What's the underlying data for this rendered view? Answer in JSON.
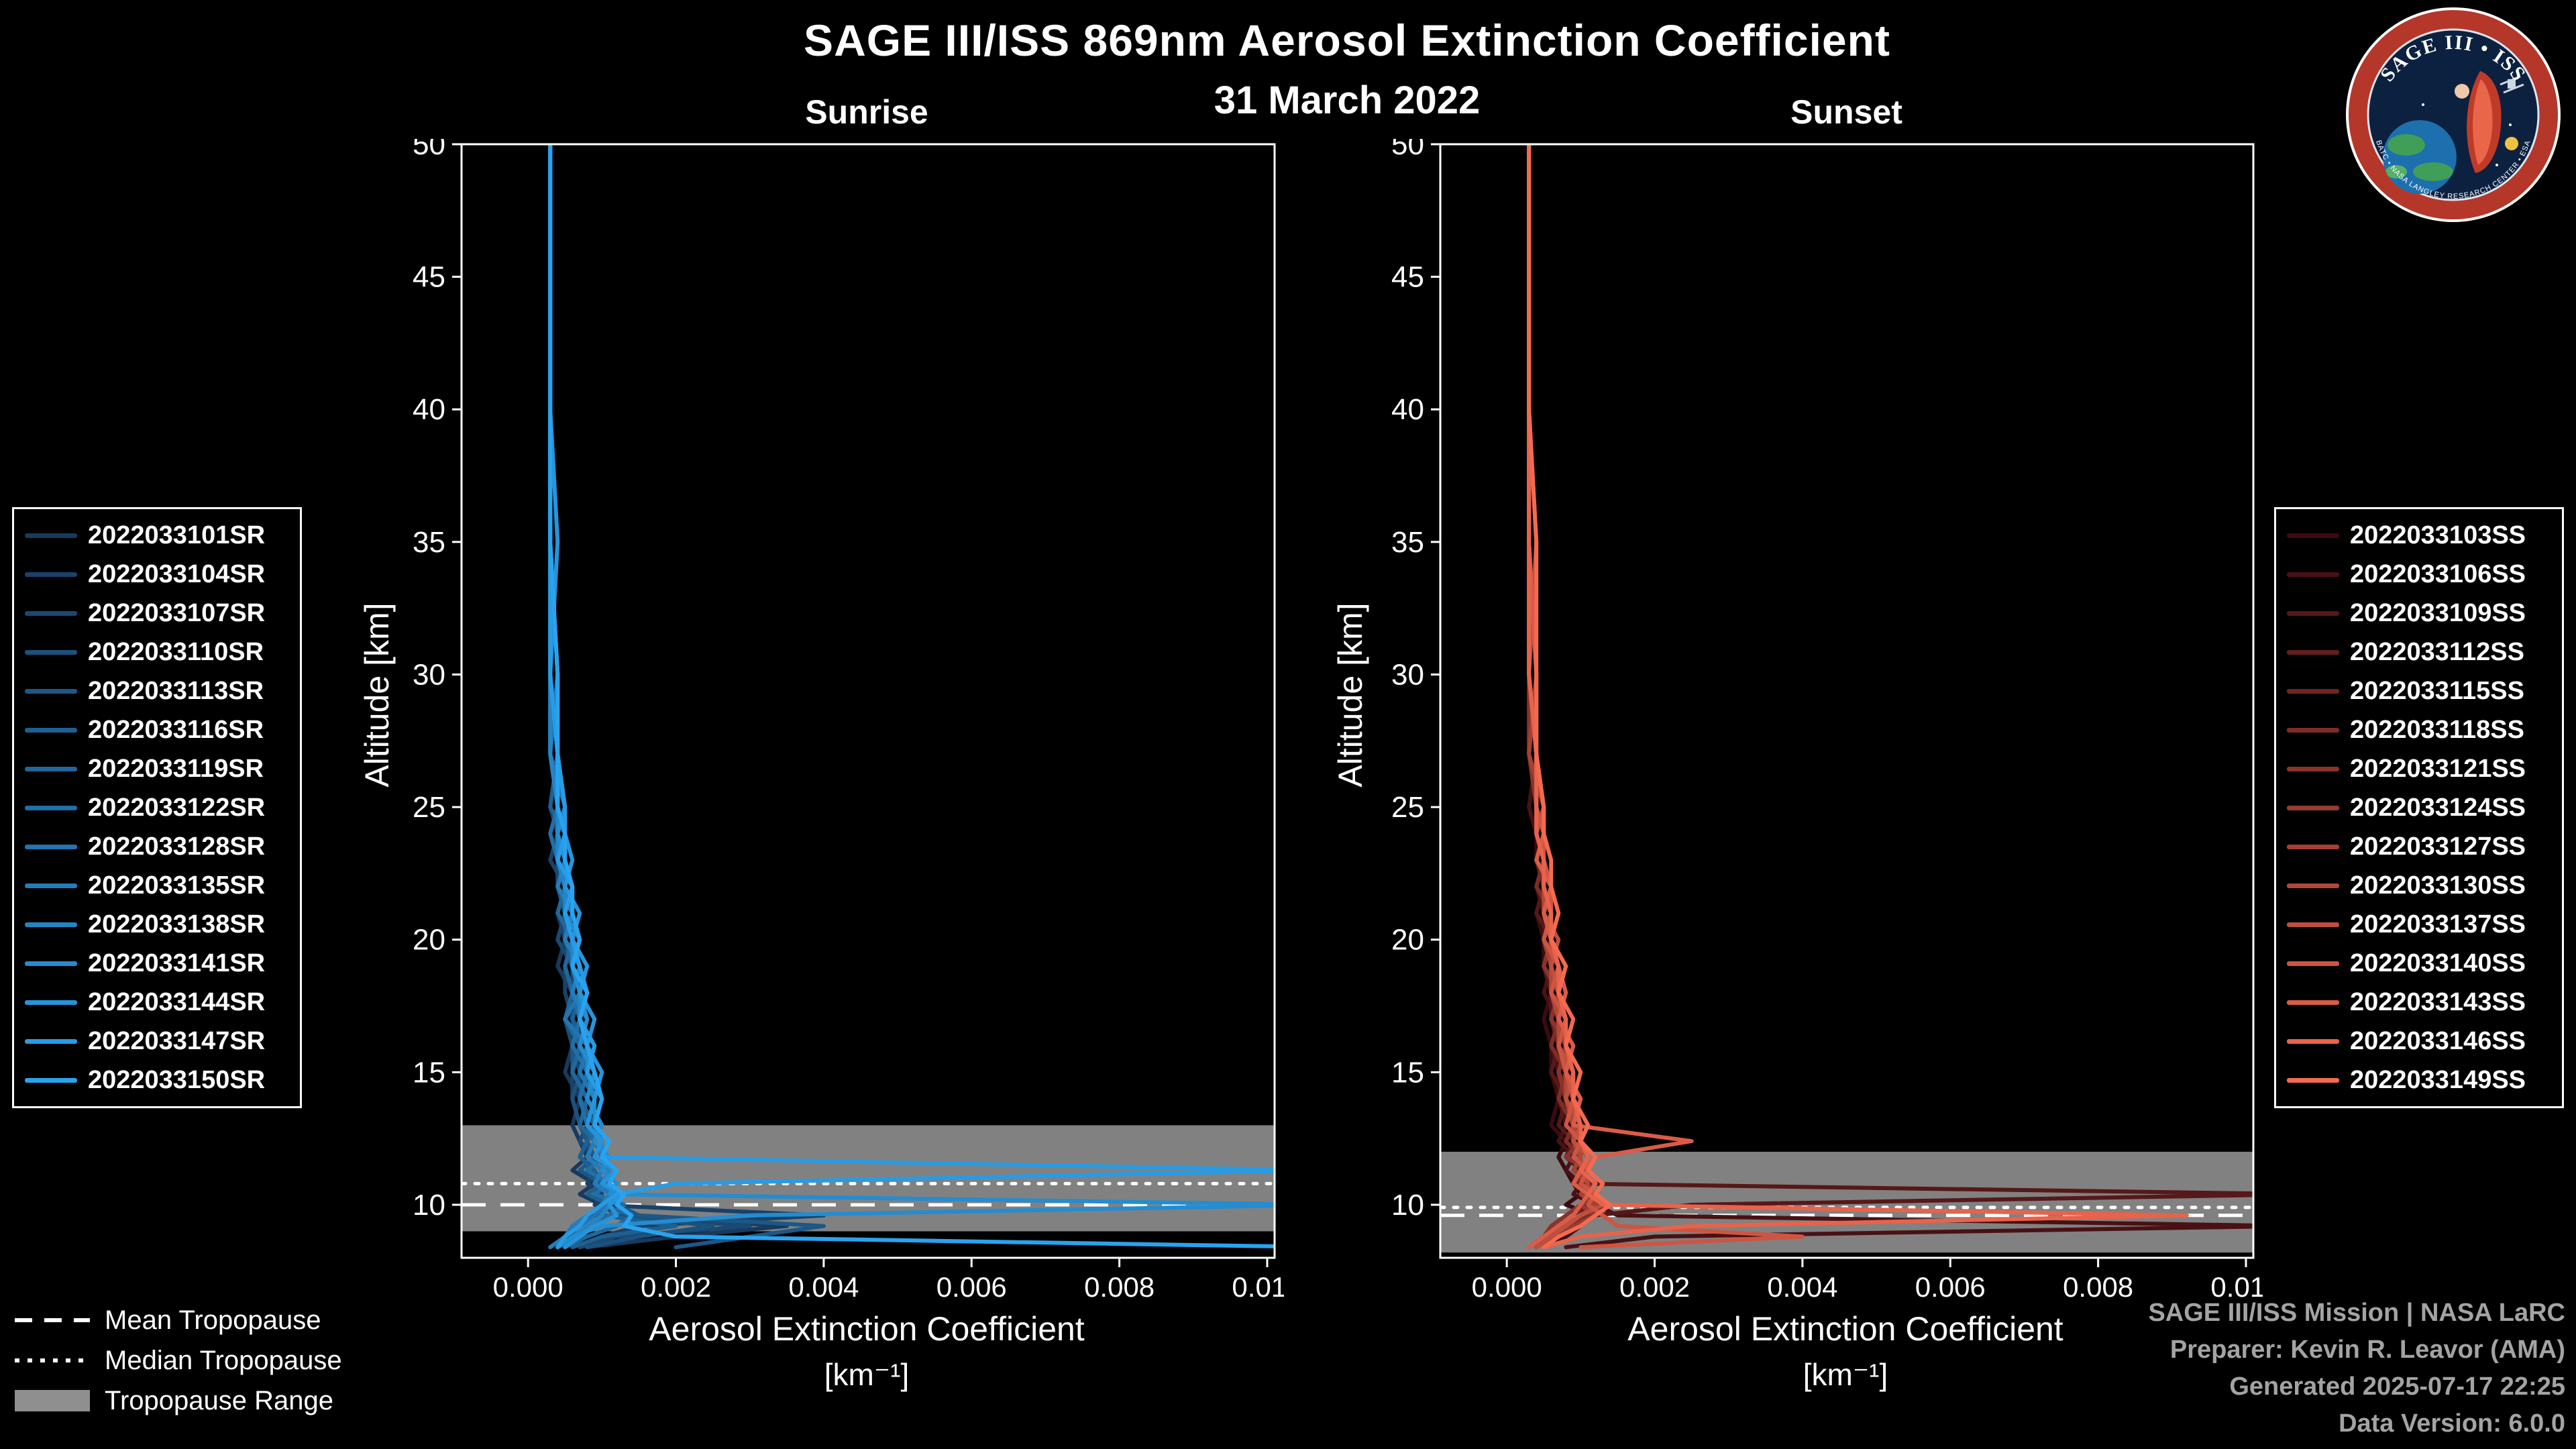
{
  "header": {
    "title": "SAGE III/ISS 869nm Aerosol Extinction Coefficient",
    "date": "31 March 2022"
  },
  "legend_tropopause": {
    "items": [
      {
        "label": "Mean Tropopause"
      },
      {
        "label": "Median Tropopause"
      },
      {
        "label": "Tropopause Range"
      }
    ]
  },
  "footer": {
    "lines": [
      "SAGE III/ISS Mission | NASA LaRC",
      "Preparer: Kevin R. Leavor (AMA)",
      "Generated 2025-07-17 22:25",
      "Data Version: 6.0.0"
    ]
  },
  "logo": {
    "title": "SAGE III • ISS",
    "ring_text": "BATC • NASA LANGLEY RESEARCH CENTER • ESA"
  },
  "colors": {
    "background": "#000000",
    "axis": "#ffffff",
    "band": "#8f8f8f",
    "sunrise_accent": "#29a3ef",
    "sunset_accent": "#f46a50"
  },
  "chart_data": [
    {
      "type": "line",
      "title": "Sunrise",
      "xlabel": "Aerosol Extinction Coefficient",
      "xunit": "[km⁻¹]",
      "ylabel": "Altitude [km]",
      "xlim": [
        -0.0009,
        0.0101
      ],
      "ylim": [
        8,
        50
      ],
      "xticks": [
        0.0,
        0.002,
        0.004,
        0.006,
        0.008,
        0.01
      ],
      "yticks": [
        10,
        15,
        20,
        25,
        30,
        35,
        40,
        45,
        50
      ],
      "grid": false,
      "legend_position": "left-outside",
      "band_color": "#8f8f8f",
      "tropopause": {
        "mean": 10.0,
        "median": 10.8,
        "range": [
          9.0,
          13.0
        ]
      },
      "values_scale": 0.0001,
      "altitudes": [
        50,
        45,
        40,
        35,
        30,
        27,
        25,
        24,
        23,
        22,
        21,
        20,
        19,
        18,
        17,
        16,
        15,
        14,
        13,
        12.4,
        11.8,
        11.3,
        10.8,
        10.4,
        10,
        9.6,
        9.2,
        8.8,
        8.4
      ],
      "series": [
        {
          "name": "2022033101SR",
          "color": "#173A5E",
          "vals": [
            3,
            3,
            3,
            3,
            3,
            3,
            4,
            3,
            4,
            5,
            4,
            5,
            4,
            6,
            5,
            6,
            5,
            7,
            6,
            7,
            8,
            6,
            9,
            7,
            10,
            8,
            35,
            20,
            8
          ]
        },
        {
          "name": "2022033104SR",
          "color": "#184268",
          "vals": [
            3,
            3,
            3,
            3,
            3,
            4,
            3,
            4,
            3,
            5,
            4,
            6,
            5,
            5,
            6,
            7,
            6,
            6,
            7,
            8,
            7,
            9,
            8,
            10,
            9,
            40,
            15,
            10,
            6
          ]
        },
        {
          "name": "2022033107SR",
          "color": "#1A4973",
          "vals": [
            3,
            3,
            3,
            3,
            4,
            3,
            4,
            5,
            4,
            4,
            5,
            4,
            6,
            6,
            5,
            6,
            7,
            7,
            8,
            7,
            9,
            8,
            10,
            9,
            11,
            10,
            30,
            12,
            7
          ]
        },
        {
          "name": "2022033110SR",
          "color": "#1B517D",
          "vals": [
            3,
            3,
            3,
            4,
            3,
            3,
            5,
            4,
            5,
            5,
            6,
            5,
            6,
            7,
            6,
            8,
            7,
            6,
            7,
            9,
            8,
            10,
            9,
            11,
            10,
            12,
            25,
            15,
            8
          ]
        },
        {
          "name": "2022033113SR",
          "color": "#1C5887",
          "vals": [
            3,
            3,
            3,
            3,
            3,
            4,
            4,
            4,
            5,
            4,
            5,
            6,
            5,
            6,
            7,
            6,
            6,
            8,
            7,
            8,
            9,
            7,
            10,
            9,
            12,
            15,
            40,
            30,
            20
          ]
        },
        {
          "name": "2022033116SR",
          "color": "#1D6092",
          "vals": [
            3,
            3,
            3,
            3,
            4,
            4,
            3,
            5,
            4,
            6,
            5,
            5,
            6,
            7,
            6,
            7,
            8,
            7,
            9,
            8,
            7,
            9,
            10,
            8,
            11,
            10,
            20,
            10,
            6
          ]
        },
        {
          "name": "2022033119SR",
          "color": "#1F679C",
          "vals": [
            3,
            3,
            3,
            3,
            3,
            3,
            4,
            4,
            5,
            5,
            4,
            6,
            5,
            6,
            5,
            7,
            6,
            8,
            7,
            9,
            8,
            10,
            9,
            12,
            10,
            14,
            12,
            8,
            5
          ]
        },
        {
          "name": "2022033122SR",
          "color": "#206FA7",
          "vals": [
            3,
            3,
            3,
            3,
            3,
            4,
            4,
            3,
            4,
            5,
            6,
            5,
            7,
            6,
            7,
            6,
            8,
            7,
            8,
            9,
            10,
            8,
            11,
            9,
            13,
            11,
            9,
            7,
            4
          ]
        },
        {
          "name": "2022033128SR",
          "color": "#2176B1",
          "vals": [
            3,
            3,
            3,
            3,
            4,
            3,
            5,
            4,
            4,
            6,
            5,
            6,
            6,
            7,
            5,
            8,
            7,
            9,
            8,
            10,
            9,
            11,
            10,
            12,
            11,
            9,
            7,
            5,
            4
          ]
        },
        {
          "name": "2022033135SR",
          "color": "#237DBB",
          "vals": [
            3,
            3,
            3,
            3,
            3,
            4,
            4,
            5,
            5,
            4,
            6,
            5,
            7,
            6,
            8,
            7,
            9,
            8,
            10,
            9,
            8,
            10,
            9,
            11,
            10,
            8,
            6,
            5,
            3
          ]
        },
        {
          "name": "2022033138SR",
          "color": "#2485C6",
          "vals": [
            3,
            3,
            3,
            3,
            3,
            3,
            4,
            4,
            4,
            5,
            5,
            6,
            6,
            7,
            7,
            8,
            8,
            9,
            9,
            10,
            10,
            11,
            10,
            12,
            11,
            10,
            8,
            6,
            4
          ]
        },
        {
          "name": "2022033141SR",
          "color": "#258CD0",
          "vals": [
            3,
            3,
            3,
            3,
            4,
            4,
            5,
            4,
            5,
            6,
            5,
            7,
            6,
            7,
            8,
            7,
            9,
            8,
            10,
            9,
            11,
            10,
            12,
            11,
            108,
            30,
            10,
            6,
            4
          ]
        },
        {
          "name": "2022033144SR",
          "color": "#2694DA",
          "vals": [
            3,
            3,
            3,
            4,
            3,
            4,
            4,
            5,
            6,
            5,
            7,
            6,
            8,
            7,
            9,
            8,
            10,
            9,
            8,
            10,
            9,
            12,
            10,
            13,
            11,
            12,
            9,
            7,
            5
          ]
        },
        {
          "name": "2022033147SR",
          "color": "#289BE5",
          "vals": [
            3,
            3,
            3,
            3,
            3,
            4,
            5,
            5,
            4,
            6,
            5,
            6,
            7,
            8,
            7,
            9,
            8,
            10,
            9,
            11,
            10,
            106,
            20,
            12,
            10,
            8,
            7,
            5,
            4
          ]
        },
        {
          "name": "2022033150SR",
          "color": "#29A3EF",
          "vals": [
            3,
            3,
            3,
            3,
            4,
            4,
            4,
            5,
            5,
            6,
            6,
            7,
            6,
            8,
            7,
            8,
            9,
            10,
            9,
            11,
            10,
            12,
            11,
            13,
            12,
            14,
            13,
            20,
            108
          ]
        }
      ]
    },
    {
      "type": "line",
      "title": "Sunset",
      "xlabel": "Aerosol Extinction Coefficient",
      "xunit": "[km⁻¹]",
      "ylabel": "Altitude [km]",
      "xlim": [
        -0.0009,
        0.0101
      ],
      "ylim": [
        8,
        50
      ],
      "xticks": [
        0.0,
        0.002,
        0.004,
        0.006,
        0.008,
        0.01
      ],
      "yticks": [
        10,
        15,
        20,
        25,
        30,
        35,
        40,
        45,
        50
      ],
      "grid": false,
      "legend_position": "right-outside",
      "band_color": "#8f8f8f",
      "tropopause": {
        "mean": 9.6,
        "median": 9.9,
        "range": [
          8.2,
          12.0
        ]
      },
      "values_scale": 0.0001,
      "altitudes": [
        50,
        45,
        40,
        35,
        30,
        27,
        25,
        24,
        23,
        22,
        21,
        20,
        19,
        18,
        17,
        16,
        15,
        14,
        13,
        12.4,
        11.8,
        11.3,
        10.8,
        10.4,
        10,
        9.6,
        9.2,
        8.8,
        8.4
      ],
      "series": [
        {
          "name": "2022033103SS",
          "color": "#3C0A0F",
          "vals": [
            3,
            3,
            3,
            3,
            3,
            3,
            4,
            4,
            4,
            5,
            4,
            5,
            5,
            6,
            5,
            6,
            6,
            7,
            6,
            8,
            7,
            8,
            9,
            10,
            8,
            12,
            10,
            8,
            5
          ]
        },
        {
          "name": "2022033106SS",
          "color": "#491114",
          "vals": [
            3,
            3,
            3,
            3,
            3,
            4,
            3,
            4,
            5,
            4,
            5,
            5,
            6,
            5,
            7,
            6,
            7,
            7,
            8,
            7,
            9,
            8,
            10,
            9,
            12,
            15,
            106,
            20,
            8
          ]
        },
        {
          "name": "2022033109SS",
          "color": "#561818",
          "vals": [
            3,
            3,
            3,
            3,
            4,
            3,
            4,
            4,
            5,
            5,
            4,
            6,
            5,
            6,
            6,
            7,
            6,
            8,
            7,
            9,
            8,
            10,
            9,
            108,
            25,
            12,
            8,
            6,
            4
          ]
        },
        {
          "name": "2022033112SS",
          "color": "#631F1D",
          "vals": [
            3,
            3,
            3,
            4,
            3,
            4,
            4,
            5,
            4,
            5,
            6,
            5,
            6,
            7,
            6,
            7,
            8,
            7,
            9,
            8,
            10,
            9,
            11,
            10,
            12,
            10,
            8,
            6,
            5
          ]
        },
        {
          "name": "2022033115SS",
          "color": "#712522",
          "vals": [
            3,
            3,
            3,
            3,
            3,
            4,
            5,
            4,
            5,
            6,
            5,
            6,
            5,
            7,
            6,
            8,
            7,
            9,
            8,
            10,
            9,
            11,
            10,
            12,
            11,
            9,
            7,
            5,
            4
          ]
        },
        {
          "name": "2022033118SS",
          "color": "#7E2C26",
          "vals": [
            3,
            3,
            3,
            3,
            4,
            4,
            4,
            5,
            5,
            4,
            6,
            5,
            7,
            6,
            7,
            6,
            8,
            7,
            9,
            8,
            10,
            9,
            12,
            10,
            13,
            11,
            8,
            6,
            4
          ]
        },
        {
          "name": "2022033121SS",
          "color": "#8B332B",
          "vals": [
            3,
            3,
            3,
            3,
            3,
            3,
            4,
            4,
            5,
            5,
            6,
            6,
            5,
            7,
            6,
            8,
            7,
            8,
            9,
            10,
            8,
            11,
            9,
            12,
            10,
            8,
            6,
            5,
            3
          ]
        },
        {
          "name": "2022033124SS",
          "color": "#983A30",
          "vals": [
            3,
            3,
            3,
            3,
            3,
            4,
            4,
            5,
            4,
            6,
            5,
            6,
            7,
            6,
            8,
            7,
            9,
            8,
            10,
            9,
            11,
            10,
            9,
            11,
            10,
            12,
            9,
            6,
            4
          ]
        },
        {
          "name": "2022033127SS",
          "color": "#A54134",
          "vals": [
            3,
            3,
            3,
            3,
            4,
            3,
            5,
            4,
            5,
            5,
            6,
            5,
            6,
            7,
            7,
            8,
            8,
            9,
            9,
            10,
            10,
            9,
            11,
            10,
            12,
            10,
            8,
            5,
            3
          ]
        },
        {
          "name": "2022033130SS",
          "color": "#B24839",
          "vals": [
            3,
            3,
            3,
            3,
            3,
            4,
            4,
            4,
            5,
            5,
            5,
            6,
            6,
            6,
            7,
            7,
            8,
            8,
            9,
            9,
            10,
            10,
            11,
            11,
            10,
            9,
            7,
            5,
            4
          ]
        },
        {
          "name": "2022033137SS",
          "color": "#BF4F3D",
          "vals": [
            3,
            3,
            3,
            4,
            3,
            4,
            5,
            4,
            5,
            6,
            5,
            7,
            6,
            7,
            8,
            7,
            9,
            8,
            10,
            9,
            11,
            10,
            12,
            11,
            13,
            10,
            8,
            6,
            4
          ]
        },
        {
          "name": "2022033140SS",
          "color": "#CD5542",
          "vals": [
            3,
            3,
            3,
            3,
            3,
            4,
            4,
            5,
            5,
            6,
            6,
            5,
            7,
            6,
            8,
            7,
            8,
            9,
            8,
            10,
            9,
            11,
            10,
            12,
            11,
            13,
            15,
            40,
            10
          ]
        },
        {
          "name": "2022033143SS",
          "color": "#DA5C47",
          "vals": [
            3,
            3,
            3,
            3,
            4,
            4,
            5,
            5,
            4,
            6,
            5,
            6,
            7,
            8,
            7,
            9,
            8,
            10,
            9,
            25,
            12,
            10,
            9,
            11,
            10,
            9,
            7,
            5,
            3
          ]
        },
        {
          "name": "2022033146SS",
          "color": "#E7634B",
          "vals": [
            3,
            3,
            3,
            3,
            3,
            4,
            4,
            4,
            5,
            5,
            6,
            6,
            7,
            7,
            8,
            8,
            9,
            9,
            10,
            10,
            11,
            10,
            12,
            11,
            13,
            92,
            25,
            10,
            5
          ]
        },
        {
          "name": "2022033149SS",
          "color": "#F46A50",
          "vals": [
            3,
            3,
            3,
            4,
            4,
            4,
            5,
            5,
            6,
            6,
            7,
            6,
            8,
            7,
            9,
            8,
            10,
            9,
            11,
            10,
            12,
            11,
            13,
            12,
            14,
            12,
            10,
            7,
            5
          ]
        }
      ]
    }
  ]
}
